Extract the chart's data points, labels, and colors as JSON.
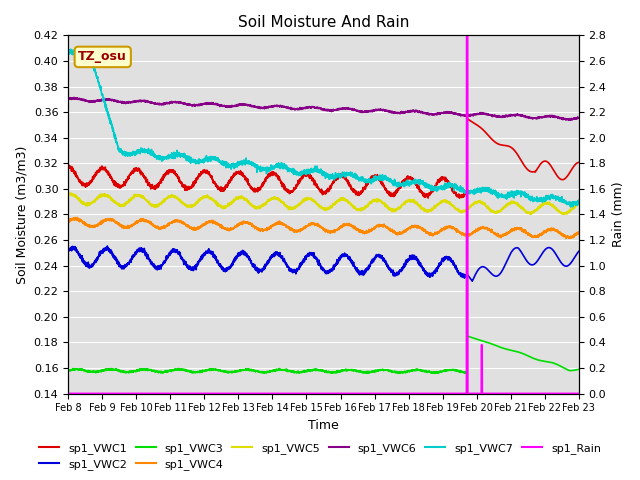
{
  "title": "Soil Moisture And Rain",
  "ylabel_left": "Soil Moisture (m3/m3)",
  "ylabel_right": "Rain (mm)",
  "xlabel": "Time",
  "ylim_left": [
    0.14,
    0.42
  ],
  "ylim_right": [
    0.0,
    2.8
  ],
  "annotation_text": "TZ_osu",
  "annotation_bg": "#ffffcc",
  "annotation_border": "#cc9900",
  "annotation_text_color": "#990000",
  "background_color": "#e0e0e0",
  "date_labels": [
    "Feb 8",
    "Feb 9",
    "Feb 10",
    "Feb 11",
    "Feb 12",
    "Feb 13",
    "Feb 14",
    "Feb 15",
    "Feb 16",
    "Feb 17",
    "Feb 18",
    "Feb 19",
    "Feb 20",
    "Feb 21",
    "Feb 22",
    "Feb 23"
  ],
  "colors": {
    "VWC1": "#dd0000",
    "VWC2": "#0000dd",
    "VWC3": "#00dd00",
    "VWC4": "#ff8800",
    "VWC5": "#dddd00",
    "VWC6": "#880088",
    "VWC7": "#00cccc",
    "Rain": "#ff00ff"
  }
}
